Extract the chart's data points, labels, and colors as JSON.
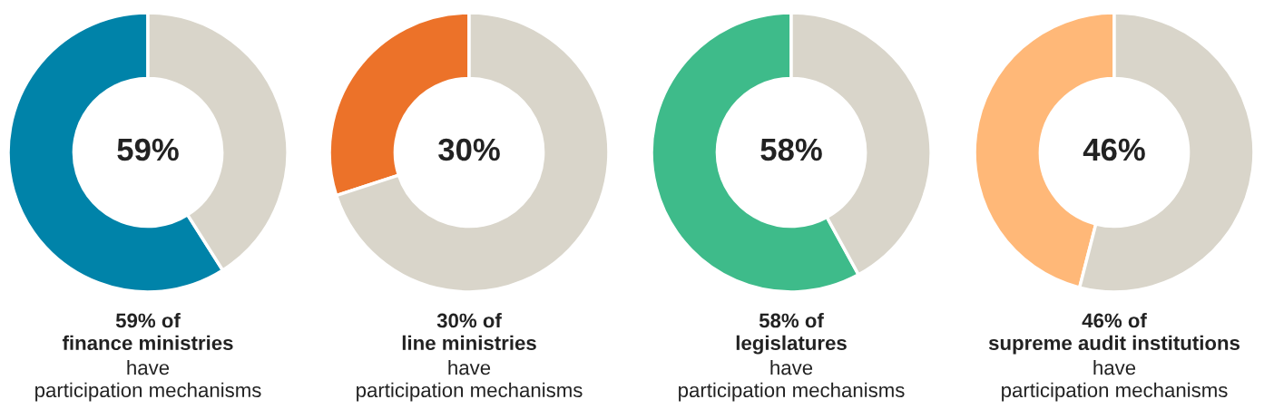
{
  "chart_data": [
    {
      "type": "donut",
      "categories": [
        null,
        null
      ],
      "values": [
        59,
        41
      ],
      "colors": [
        "#0083a9",
        "#d9d5ca"
      ],
      "value_labels": [
        "59%",
        null
      ],
      "annotations": [
        "59% of\nfinance ministries",
        "have\nparticipation mechanisms"
      ]
    },
    {
      "type": "donut",
      "categories": [
        null,
        null
      ],
      "values": [
        30,
        70
      ],
      "colors": [
        "#ec7229",
        "#d9d5ca"
      ],
      "value_labels": [
        "30%",
        null
      ],
      "annotations": [
        "30% of\nline ministries",
        "have\nparticipation mechanisms"
      ]
    },
    {
      "type": "donut",
      "categories": [
        null,
        null
      ],
      "values": [
        58,
        42
      ],
      "colors": [
        "#3ebb8a",
        "#d9d5ca"
      ],
      "value_labels": [
        "58%",
        null
      ],
      "annotations": [
        "58% of\nlegislatures",
        "have\nparticipation mechanisms"
      ]
    },
    {
      "type": "donut",
      "categories": [
        null,
        null
      ],
      "values": [
        46,
        54
      ],
      "colors": [
        "#ffb878",
        "#d9d5ca"
      ],
      "value_labels": [
        "46%",
        null
      ],
      "annotations": [
        "46% of\nsupreme audit institutions",
        "have\nparticipation mechanisms"
      ]
    }
  ]
}
